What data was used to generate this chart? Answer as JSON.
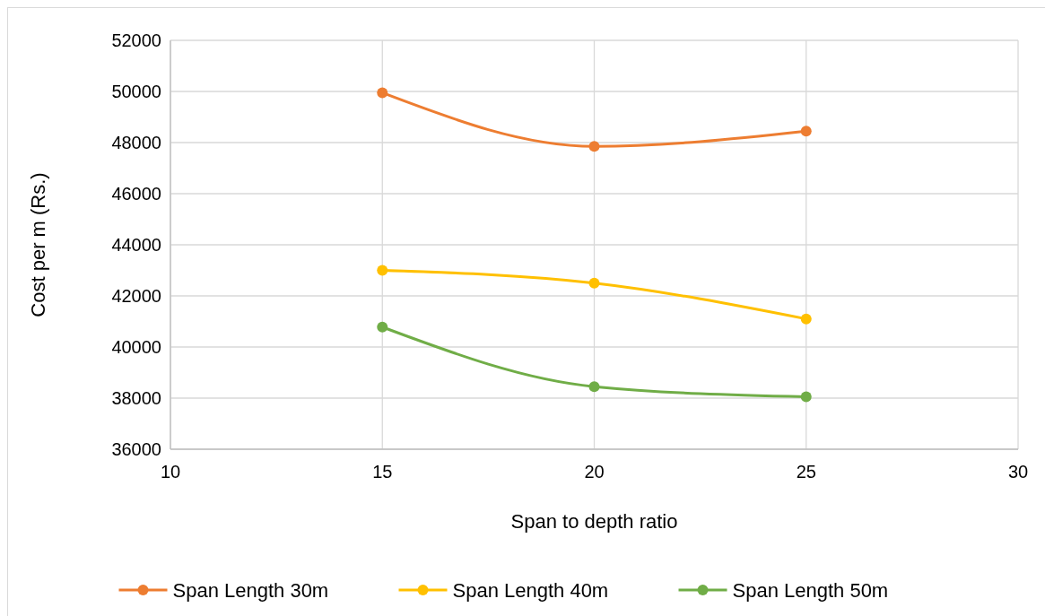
{
  "chart_data": {
    "type": "line",
    "xlabel": "Span to depth ratio",
    "ylabel": "Cost per m (Rs.)",
    "x": [
      15,
      20,
      25
    ],
    "series": [
      {
        "name": "Span Length 30m",
        "color": "#ed7d31",
        "values": [
          49950,
          47850,
          48450
        ]
      },
      {
        "name": "Span Length 40m",
        "color": "#ffc000",
        "values": [
          43000,
          42500,
          41100
        ]
      },
      {
        "name": "Span Length 50m",
        "color": "#70ad47",
        "values": [
          40780,
          38450,
          38050
        ]
      }
    ],
    "xlim": [
      10,
      30
    ],
    "xticks": [
      10,
      15,
      20,
      25,
      30
    ],
    "ylim": [
      36000,
      52000
    ],
    "yticks": [
      36000,
      38000,
      40000,
      42000,
      44000,
      46000,
      48000,
      50000,
      52000
    ],
    "grid": true,
    "legend": "bottom",
    "marker": "circle",
    "line_style": "solid"
  }
}
